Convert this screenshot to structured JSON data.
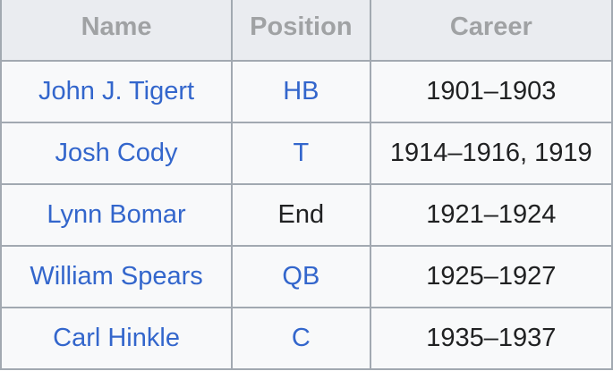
{
  "table": {
    "headers": [
      "Name",
      "Position",
      "Career"
    ],
    "rows": [
      {
        "name": "John J. Tigert",
        "position": "HB",
        "career": "1901–1903"
      },
      {
        "name": "Josh Cody",
        "position": "T",
        "career": "1914–1916, 1919"
      },
      {
        "name": "Lynn Bomar",
        "position": "End",
        "career": "1921–1924"
      },
      {
        "name": "William Spears",
        "position": "QB",
        "career": "1925–1927"
      },
      {
        "name": "Carl Hinkle",
        "position": "C",
        "career": "1935–1937"
      }
    ]
  },
  "colors": {
    "link": "#3366cc",
    "text": "#202122",
    "header_text": "#a0a2a4",
    "header_bg": "#eaecf0",
    "cell_bg": "#f8f9fa",
    "border": "#a2a9b1"
  }
}
